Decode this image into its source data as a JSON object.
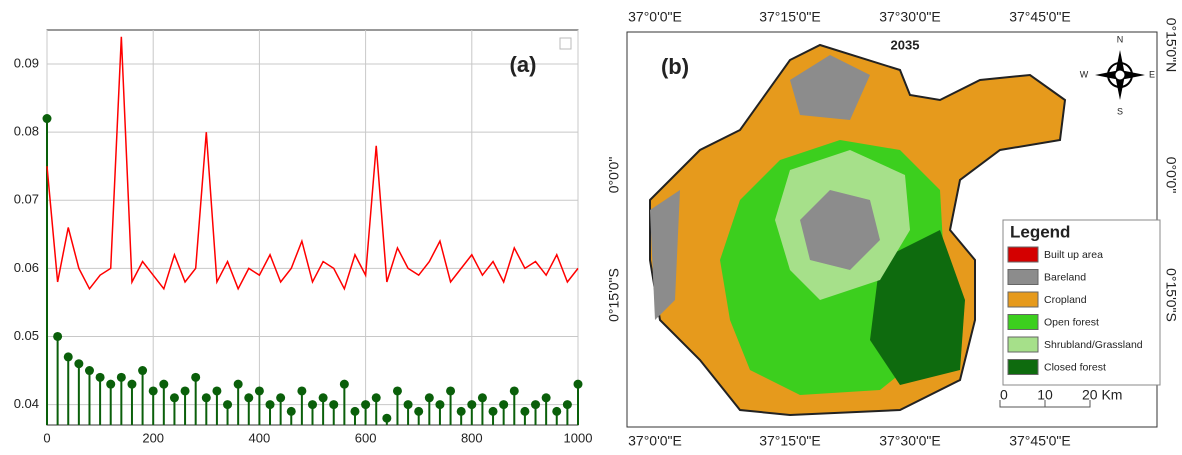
{
  "chart_data": {
    "type": "line",
    "annotations": [
      "(a)"
    ],
    "x": [
      0,
      20,
      40,
      60,
      80,
      100,
      120,
      140,
      160,
      180,
      200,
      220,
      240,
      260,
      280,
      300,
      320,
      340,
      360,
      380,
      400,
      420,
      440,
      460,
      480,
      500,
      520,
      540,
      560,
      580,
      600,
      620,
      640,
      660,
      680,
      700,
      720,
      740,
      760,
      780,
      800,
      820,
      840,
      860,
      880,
      900,
      920,
      940,
      960,
      980,
      1000
    ],
    "series": [
      {
        "name": "red",
        "color": "#ff0000",
        "values": [
          0.075,
          0.058,
          0.066,
          0.06,
          0.057,
          0.059,
          0.06,
          0.094,
          0.058,
          0.061,
          0.059,
          0.057,
          0.062,
          0.058,
          0.06,
          0.08,
          0.058,
          0.061,
          0.057,
          0.06,
          0.059,
          0.062,
          0.058,
          0.06,
          0.064,
          0.058,
          0.061,
          0.06,
          0.057,
          0.062,
          0.059,
          0.078,
          0.058,
          0.063,
          0.06,
          0.059,
          0.061,
          0.064,
          0.058,
          0.06,
          0.062,
          0.059,
          0.061,
          0.058,
          0.063,
          0.06,
          0.061,
          0.059,
          0.062,
          0.058,
          0.06
        ]
      },
      {
        "name": "green",
        "color": "#0a5f0a",
        "values": [
          0.082,
          0.05,
          0.047,
          0.046,
          0.045,
          0.044,
          0.043,
          0.044,
          0.043,
          0.045,
          0.042,
          0.043,
          0.041,
          0.042,
          0.044,
          0.041,
          0.042,
          0.04,
          0.043,
          0.041,
          0.042,
          0.04,
          0.041,
          0.039,
          0.042,
          0.04,
          0.041,
          0.04,
          0.043,
          0.039,
          0.04,
          0.041,
          0.038,
          0.042,
          0.04,
          0.039,
          0.041,
          0.04,
          0.042,
          0.039,
          0.04,
          0.041,
          0.039,
          0.04,
          0.042,
          0.039,
          0.04,
          0.041,
          0.039,
          0.04,
          0.043
        ]
      }
    ],
    "xlim": [
      0,
      1000
    ],
    "xticks": [
      0,
      200,
      400,
      600,
      800,
      1000
    ],
    "ylim": [
      0.037,
      0.095
    ],
    "yticks": [
      0.04,
      0.05,
      0.06,
      0.07,
      0.08,
      0.09
    ],
    "grid": true
  },
  "map": {
    "panel_label": "(b)",
    "title": "2035",
    "lon_labels": [
      "37°0'0\"E",
      "37°15'0\"E",
      "37°30'0\"E",
      "37°45'0\"E"
    ],
    "lat_labels": [
      "0°15'0\"N",
      "0°0'0\"",
      "0°15'0\"S"
    ],
    "compass": {
      "n": "N",
      "s": "S",
      "e": "E",
      "w": "W"
    },
    "legend": {
      "title": "Legend",
      "items": [
        {
          "label": "Built up area",
          "color": "#d40000"
        },
        {
          "label": "Bareland",
          "color": "#8c8c8c"
        },
        {
          "label": "Cropland",
          "color": "#e69a1c"
        },
        {
          "label": "Open forest",
          "color": "#3ccf1e"
        },
        {
          "label": "Shrubland/Grassland",
          "color": "#a6e08a"
        },
        {
          "label": "Closed forest",
          "color": "#0e6b0e"
        }
      ]
    },
    "scale": [
      "0",
      "10",
      "20 Km"
    ]
  }
}
